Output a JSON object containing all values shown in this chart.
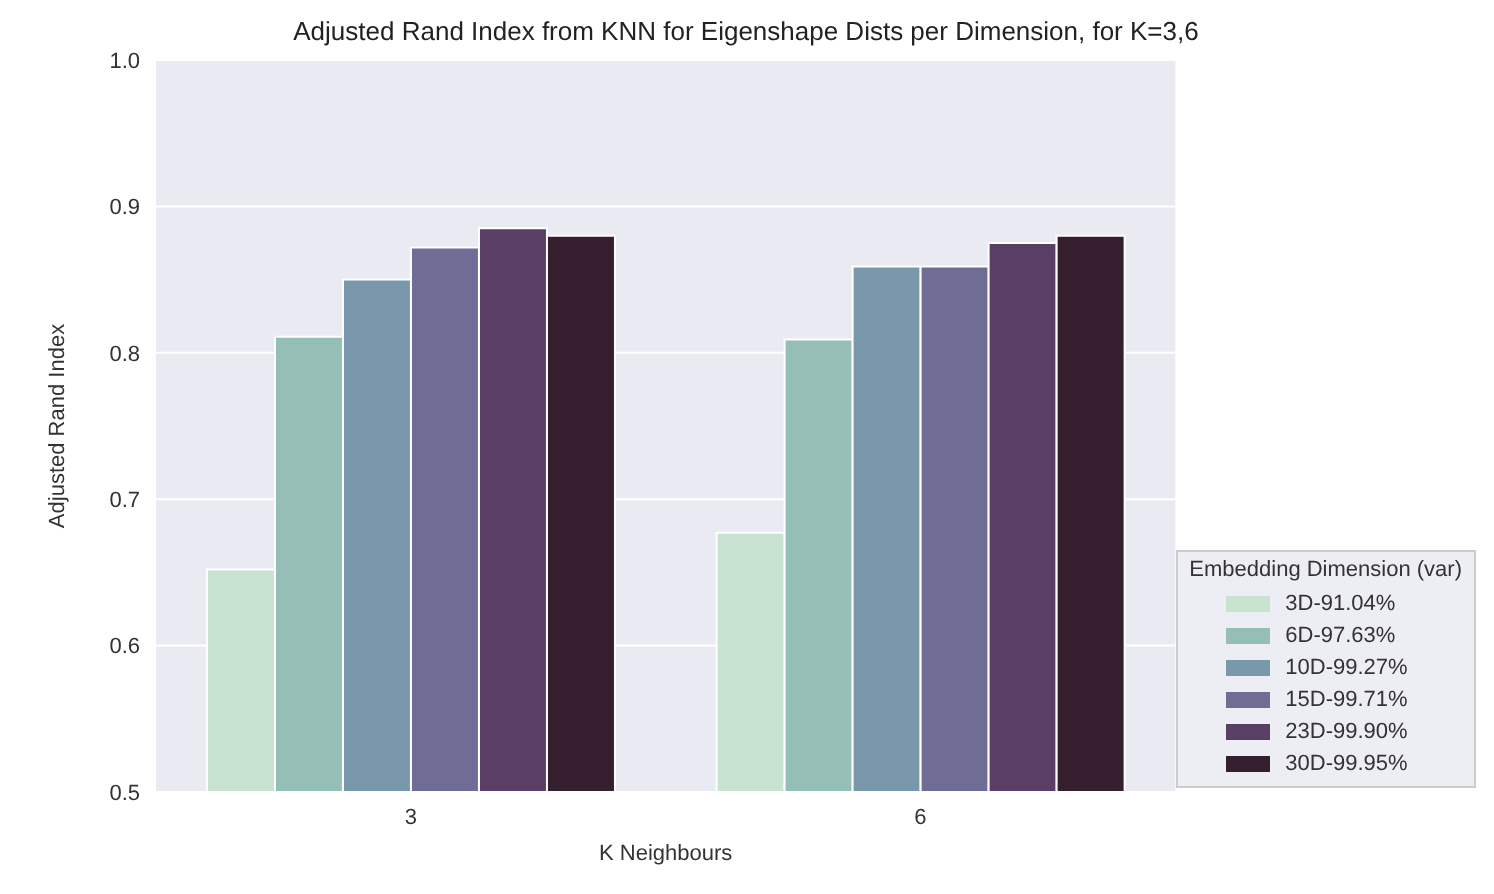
{
  "chart_data": {
    "type": "bar",
    "title": "Adjusted Rand Index from KNN for Eigenshape Dists per Dimension, for K=3,6",
    "xlabel": "K Neighbours",
    "ylabel": "Adjusted Rand Index",
    "legend_title": "Embedding Dimension (var)",
    "categories": [
      "3",
      "6"
    ],
    "series": [
      {
        "name": "3D-91.04%",
        "color": "#c9e3d1",
        "values": [
          0.652,
          0.677
        ]
      },
      {
        "name": "6D-97.63%",
        "color": "#95beb7",
        "values": [
          0.811,
          0.809
        ]
      },
      {
        "name": "10D-99.27%",
        "color": "#7a98ac",
        "values": [
          0.85,
          0.859
        ]
      },
      {
        "name": "15D-99.71%",
        "color": "#6f6d96",
        "values": [
          0.872,
          0.859
        ]
      },
      {
        "name": "23D-99.90%",
        "color": "#5a3e66",
        "values": [
          0.885,
          0.875
        ]
      },
      {
        "name": "30D-99.95%",
        "color": "#351f2e",
        "values": [
          0.88,
          0.88
        ]
      }
    ],
    "ylim": [
      0.5,
      1.0
    ],
    "yticks": [
      0.5,
      0.6,
      0.7,
      0.8,
      0.9,
      {
        "value": 1.0,
        "label": "1.0"
      }
    ],
    "grid": "y",
    "legend": "bottom right"
  }
}
